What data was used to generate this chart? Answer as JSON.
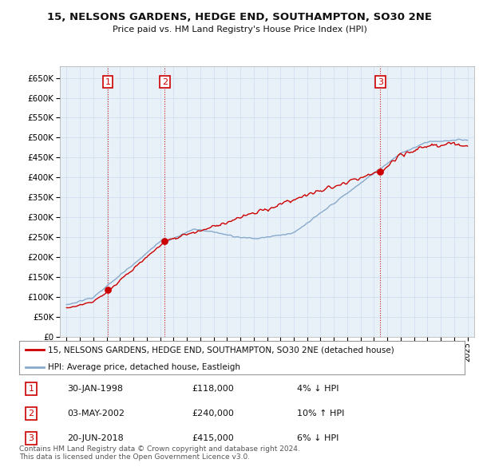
{
  "title": "15, NELSONS GARDENS, HEDGE END, SOUTHAMPTON, SO30 2NE",
  "subtitle": "Price paid vs. HM Land Registry's House Price Index (HPI)",
  "property_label": "15, NELSONS GARDENS, HEDGE END, SOUTHAMPTON, SO30 2NE (detached house)",
  "hpi_label": "HPI: Average price, detached house, Eastleigh",
  "property_color": "#cc0000",
  "hpi_color": "#88aacc",
  "transactions": [
    {
      "num": 1,
      "date": "30-JAN-1998",
      "price": 118000,
      "hpi_pct": "4% ↓ HPI",
      "year": 1998.08
    },
    {
      "num": 2,
      "date": "03-MAY-2002",
      "price": 240000,
      "hpi_pct": "10% ↑ HPI",
      "year": 2002.34
    },
    {
      "num": 3,
      "date": "20-JUN-2018",
      "price": 415000,
      "hpi_pct": "6% ↓ HPI",
      "year": 2018.47
    }
  ],
  "yticks": [
    0,
    50000,
    100000,
    150000,
    200000,
    250000,
    300000,
    350000,
    400000,
    450000,
    500000,
    550000,
    600000,
    650000
  ],
  "ylim": [
    0,
    680000
  ],
  "xlim": [
    1994.5,
    2025.5
  ],
  "footnote": "Contains HM Land Registry data © Crown copyright and database right 2024.\nThis data is licensed under the Open Government Licence v3.0.",
  "bg_color": "#ffffff",
  "grid_color": "#ccddee",
  "plot_bg": "#e8f0f8"
}
